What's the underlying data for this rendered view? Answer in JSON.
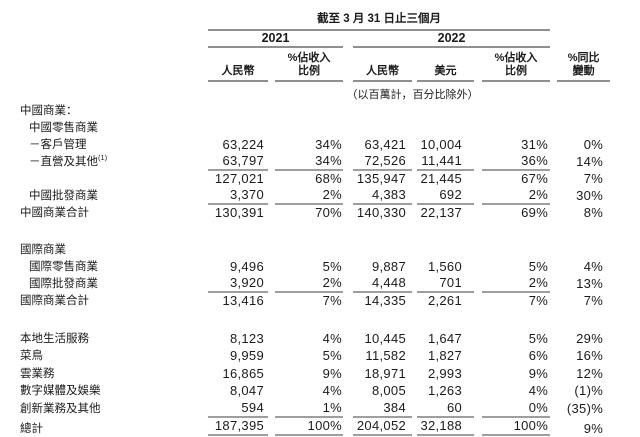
{
  "header": {
    "period_title": "截至 3 月 31 日止三個月",
    "year_2021": "2021",
    "year_2022": "2022",
    "col_rmb_2021": "人民幣",
    "col_pct_2021_l1": "%佔收入",
    "col_pct_2021_l2": "比例",
    "col_rmb_2022": "人民幣",
    "col_usd_2022": "美元",
    "col_pct_2022_l1": "%佔收入",
    "col_pct_2022_l2": "比例",
    "col_yoy_l1": "%同比",
    "col_yoy_l2": "變動",
    "unit_note": "（以百萬計，百分比除外）"
  },
  "rows": [
    {
      "label": "中國商業：",
      "indent": 0
    },
    {
      "label": "中國零售商業",
      "indent": 1
    },
    {
      "label": "－客戶管理",
      "indent": 1,
      "values": [
        "63,224",
        "34%",
        "63,421",
        "10,004",
        "31%",
        "0%"
      ]
    },
    {
      "label": "－直營及其他",
      "sup": "(1)",
      "indent": 1,
      "underline": true,
      "values": [
        "63,797",
        "34%",
        "72,526",
        "11,441",
        "36%",
        "14%"
      ]
    },
    {
      "label": "",
      "indent": 1,
      "values": [
        "127,021",
        "68%",
        "135,947",
        "21,445",
        "67%",
        "7%"
      ]
    },
    {
      "label": "中國批發商業",
      "indent": 1,
      "underline": true,
      "values": [
        "3,370",
        "2%",
        "4,383",
        "692",
        "2%",
        "30%"
      ]
    },
    {
      "label": "中國商業合計",
      "indent": 0,
      "values": [
        "130,391",
        "70%",
        "140,330",
        "22,137",
        "69%",
        "8%"
      ]
    },
    {
      "label": "國際商業",
      "indent": 0,
      "gap_before": true
    },
    {
      "label": "國際零售商業",
      "indent": 1,
      "values": [
        "9,496",
        "5%",
        "9,887",
        "1,560",
        "5%",
        "4%"
      ]
    },
    {
      "label": "國際批發商業",
      "indent": 1,
      "underline": true,
      "values": [
        "3,920",
        "2%",
        "4,448",
        "701",
        "2%",
        "13%"
      ]
    },
    {
      "label": "國際商業合計",
      "indent": 0,
      "values": [
        "13,416",
        "7%",
        "14,335",
        "2,261",
        "7%",
        "7%"
      ]
    },
    {
      "label": "本地生活服務",
      "indent": 0,
      "gap_before": true,
      "tall": true,
      "values": [
        "8,123",
        "4%",
        "10,445",
        "1,647",
        "5%",
        "29%"
      ]
    },
    {
      "label": "菜鳥",
      "indent": 0,
      "tall": true,
      "values": [
        "9,959",
        "5%",
        "11,582",
        "1,827",
        "6%",
        "16%"
      ]
    },
    {
      "label": "雲業務",
      "indent": 0,
      "tall": true,
      "values": [
        "16,865",
        "9%",
        "18,971",
        "2,993",
        "9%",
        "12%"
      ]
    },
    {
      "label": "數字媒體及娛樂",
      "indent": 0,
      "tall": true,
      "values": [
        "8,047",
        "4%",
        "8,005",
        "1,263",
        "4%",
        "(1)%"
      ]
    },
    {
      "label": "創新業務及其他",
      "indent": 0,
      "underline": true,
      "tall": true,
      "values": [
        "594",
        "1%",
        "384",
        "60",
        "0%",
        "(35)%"
      ]
    },
    {
      "label": "總計",
      "indent": 0,
      "total": true,
      "tall": true,
      "values": [
        "187,395",
        "100%",
        "204,052",
        "32,188",
        "100%",
        "9%"
      ]
    }
  ]
}
